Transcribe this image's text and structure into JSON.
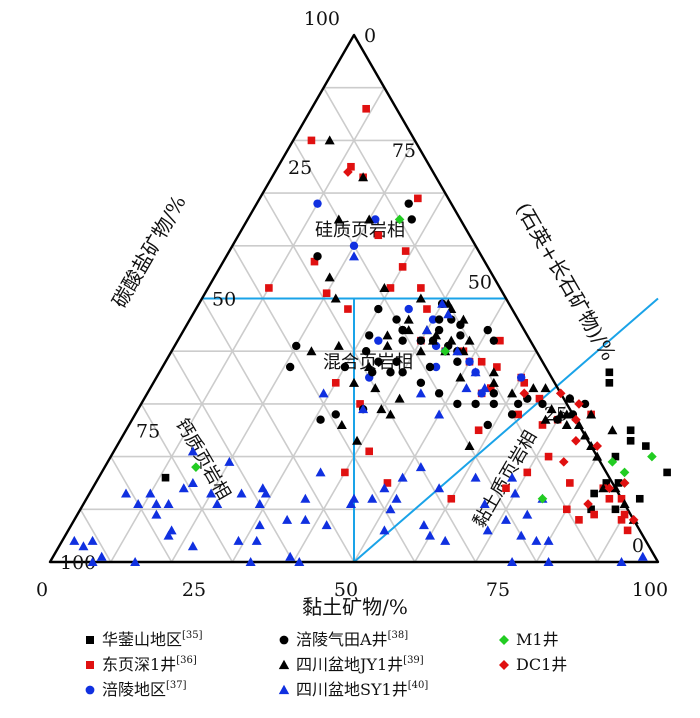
{
  "chart_data": {
    "type": "ternary-scatter",
    "axes": {
      "bottom": {
        "label": "黏土矿物/%",
        "ticks": [
          "0",
          "25",
          "50",
          "75",
          "100"
        ]
      },
      "left": {
        "label": "碳酸盐矿物/%",
        "ticks": [
          "0",
          "25",
          "50",
          "75",
          "100"
        ]
      },
      "right": {
        "label": "(石英+长石矿物)/%",
        "ticks": [
          "100",
          "75",
          "50",
          "25",
          "0"
        ]
      }
    },
    "grid": true,
    "grid_step": 10,
    "region_labels": [
      "硅质页岩相",
      "混合页岩相",
      "钙质页岩相",
      "黏土质页岩相"
    ],
    "legend_position": "bottom",
    "legend": [
      {
        "label": "华蓥山地区",
        "ref": "[35]",
        "color": "#000000",
        "marker": "square"
      },
      {
        "label": "涪陵气田A井",
        "ref": "[38]",
        "color": "#000000",
        "marker": "circle"
      },
      {
        "label": "M1井",
        "ref": "",
        "color": "#22cc22",
        "marker": "diamond"
      },
      {
        "label": "东页深1井",
        "ref": "[36]",
        "color": "#e01010",
        "marker": "square"
      },
      {
        "label": "四川盆地JY1井",
        "ref": "[39]",
        "color": "#000000",
        "marker": "triangle"
      },
      {
        "label": "DC1井",
        "ref": "",
        "color": "#e01010",
        "marker": "diamond"
      },
      {
        "label": "涪陵地区",
        "ref": "[37]",
        "color": "#1030e0",
        "marker": "circle"
      },
      {
        "label": "四川盆地SY1井",
        "ref": "[40]",
        "color": "#1030e0",
        "marker": "triangle"
      }
    ],
    "series": [
      {
        "name": "华蓥山地区",
        "points": [
          [
            84,
            10
          ],
          [
            83,
            13
          ],
          [
            84,
            15
          ],
          [
            86,
            15
          ],
          [
            88,
            10
          ],
          [
            91,
            12
          ],
          [
            93,
            17
          ],
          [
            87,
            22
          ],
          [
            83,
            20
          ],
          [
            84,
            23
          ],
          [
            83,
            25
          ],
          [
            11,
            16
          ],
          [
            75,
            34
          ],
          [
            74,
            36
          ]
        ]
      },
      {
        "name": "东页深1井",
        "points": [
          [
            9,
            86
          ],
          [
            3,
            80
          ],
          [
            15,
            73
          ],
          [
            26,
            69
          ],
          [
            29,
            59
          ],
          [
            15,
            57
          ],
          [
            10,
            52
          ],
          [
            20,
            51
          ],
          [
            30,
            52
          ],
          [
            25,
            48
          ],
          [
            40,
            42
          ],
          [
            45,
            40
          ],
          [
            50,
            38
          ],
          [
            52,
            38
          ],
          [
            60,
            35
          ],
          [
            65,
            31
          ],
          [
            53,
            42
          ],
          [
            48,
            40
          ],
          [
            38,
            48
          ],
          [
            35,
            52
          ],
          [
            30,
            56
          ],
          [
            23,
            62
          ],
          [
            12,
            75
          ],
          [
            70,
            27
          ],
          [
            68,
            26
          ],
          [
            72,
            20
          ],
          [
            70,
            17
          ],
          [
            68,
            14
          ],
          [
            80,
            10
          ],
          [
            84,
            14
          ],
          [
            86,
            12
          ],
          [
            88,
            12
          ],
          [
            83,
            8
          ],
          [
            90,
            8
          ],
          [
            90,
            9
          ],
          [
            85,
            9
          ],
          [
            92,
            6
          ],
          [
            60,
            12
          ],
          [
            48,
            15
          ],
          [
            40,
            17
          ],
          [
            55,
            32
          ],
          [
            30,
            34
          ],
          [
            42,
            21
          ],
          [
            56,
            33
          ],
          [
            61,
            34
          ],
          [
            55,
            37
          ],
          [
            78,
            15
          ],
          [
            75,
            28
          ],
          [
            58,
            25
          ],
          [
            36,
            30
          ],
          [
            63,
            28
          ]
        ]
      },
      {
        "name": "涪陵地区",
        "points": [
          [
            10,
            68
          ],
          [
            20,
            60
          ],
          [
            21,
            65
          ],
          [
            40,
            46
          ],
          [
            45,
            40
          ],
          [
            50,
            38
          ],
          [
            35,
            48
          ],
          [
            43,
            41
          ],
          [
            45,
            37
          ],
          [
            40,
            42
          ],
          [
            35,
            35
          ],
          [
            33,
            42
          ],
          [
            55,
            32
          ],
          [
            52,
            36
          ],
          [
            60,
            35
          ]
        ]
      },
      {
        "name": "涪陵气田A井",
        "points": [
          [
            27,
            65
          ],
          [
            25,
            68
          ],
          [
            15,
            58
          ],
          [
            40,
            49
          ],
          [
            30,
            48
          ],
          [
            40,
            49
          ],
          [
            36,
            44
          ],
          [
            34,
            46
          ],
          [
            31,
            43
          ],
          [
            37,
            42
          ],
          [
            40,
            42
          ],
          [
            45,
            41
          ],
          [
            46,
            43
          ],
          [
            42,
            44
          ],
          [
            42,
            42
          ],
          [
            38,
            38
          ],
          [
            35,
            38
          ],
          [
            35,
            36
          ],
          [
            38,
            36
          ],
          [
            44,
            37
          ],
          [
            48,
            38
          ],
          [
            48,
            32
          ],
          [
            52,
            30
          ],
          [
            55,
            30
          ],
          [
            58,
            30
          ],
          [
            57,
            32
          ],
          [
            62,
            30
          ],
          [
            63,
            31
          ],
          [
            62,
            28
          ],
          [
            59,
            26
          ],
          [
            66,
            30
          ],
          [
            70,
            31
          ],
          [
            73,
            30
          ],
          [
            72,
            28
          ],
          [
            70,
            27
          ],
          [
            37,
            29
          ],
          [
            32,
            40
          ],
          [
            30,
            37
          ],
          [
            33,
            28
          ],
          [
            31,
            27
          ],
          [
            21,
            37
          ],
          [
            20,
            41
          ],
          [
            41,
            46
          ],
          [
            36,
            44
          ],
          [
            40,
            36
          ],
          [
            44,
            34
          ],
          [
            47,
            40
          ],
          [
            45,
            45
          ],
          [
            43,
            46
          ],
          [
            52,
            42
          ],
          [
            50,
            44
          ]
        ]
      },
      {
        "name": "四川盆地JY1井",
        "points": [
          [
            6,
            80
          ],
          [
            15,
            73
          ],
          [
            20,
            65
          ],
          [
            15,
            65
          ],
          [
            19,
            54
          ],
          [
            22,
            50
          ],
          [
            29,
            52
          ],
          [
            36,
            50
          ],
          [
            42,
            48
          ],
          [
            41,
            49
          ],
          [
            36,
            46
          ],
          [
            35,
            41
          ],
          [
            34,
            43
          ],
          [
            37,
            44
          ],
          [
            45,
            42
          ],
          [
            45,
            40
          ],
          [
            42,
            42
          ],
          [
            41,
            40
          ],
          [
            40,
            44
          ],
          [
            48,
            40
          ],
          [
            48,
            42
          ],
          [
            45,
            46
          ],
          [
            42,
            43
          ],
          [
            50,
            35
          ],
          [
            55,
            36
          ],
          [
            56,
            34
          ],
          [
            60,
            32
          ],
          [
            63,
            33
          ],
          [
            65,
            33
          ],
          [
            68,
            29
          ],
          [
            70,
            31
          ],
          [
            70,
            28
          ],
          [
            71,
            28
          ],
          [
            68,
            27
          ],
          [
            72,
            26
          ],
          [
            74,
            26
          ],
          [
            76,
            24
          ],
          [
            78,
            22
          ],
          [
            80,
            20
          ],
          [
            84,
            14
          ],
          [
            86,
            14
          ],
          [
            89,
            11
          ],
          [
            92,
            8
          ],
          [
            40,
            29
          ],
          [
            33,
            34
          ],
          [
            37,
            33
          ],
          [
            34,
            37
          ],
          [
            27,
            41
          ],
          [
            23,
            40
          ],
          [
            39,
            23
          ],
          [
            35,
            26
          ],
          [
            42,
            31
          ],
          [
            42,
            28
          ],
          [
            58,
            22
          ],
          [
            75,
            28
          ],
          [
            80,
            25
          ]
        ]
      },
      {
        "name": "四川盆地SY1井",
        "points": [
          [
            21,
            58
          ],
          [
            40,
            49
          ],
          [
            42,
            47
          ],
          [
            40,
            44
          ],
          [
            47,
            40
          ],
          [
            52,
            36
          ],
          [
            45,
            32
          ],
          [
            55,
            33
          ],
          [
            29,
            32
          ],
          [
            37,
            29
          ],
          [
            52,
            33
          ],
          [
            50,
            28
          ],
          [
            36,
            17
          ],
          [
            52,
            18
          ],
          [
            50,
            16
          ],
          [
            48,
            14
          ],
          [
            47,
            12
          ],
          [
            44,
            12
          ],
          [
            51,
            10
          ],
          [
            51,
            12
          ],
          [
            57,
            14
          ],
          [
            62,
            16
          ],
          [
            68,
            16
          ],
          [
            70,
            13
          ],
          [
            74,
            9
          ],
          [
            71,
            8
          ],
          [
            69,
            6
          ],
          [
            75,
            5
          ],
          [
            78,
            4
          ],
          [
            80,
            4
          ],
          [
            60,
            5
          ],
          [
            58,
            7
          ],
          [
            52,
            6
          ],
          [
            42,
            7
          ],
          [
            75,
            12
          ],
          [
            66,
            11
          ],
          [
            63,
            4
          ],
          [
            76,
            0
          ],
          [
            82,
            0
          ],
          [
            94,
            0
          ],
          [
            97,
            1
          ],
          [
            17,
            5
          ],
          [
            14,
            11
          ],
          [
            22,
            11
          ],
          [
            20,
            19
          ],
          [
            31,
            7
          ],
          [
            38,
            8
          ],
          [
            29,
            11
          ],
          [
            28,
            14
          ],
          [
            36,
            12
          ],
          [
            44,
            11
          ],
          [
            20,
            13
          ],
          [
            35,
            8
          ],
          [
            32,
            4
          ],
          [
            33,
            0
          ],
          [
            41,
            0
          ],
          [
            39,
            1
          ],
          [
            29,
            4
          ],
          [
            16,
            15
          ],
          [
            13,
            21
          ],
          [
            12,
            11
          ],
          [
            8,
            1
          ],
          [
            6,
            13
          ],
          [
            9,
            11
          ],
          [
            10,
            13
          ],
          [
            13,
            9
          ],
          [
            17,
            6
          ],
          [
            4,
            3
          ],
          [
            5,
            4
          ],
          [
            2,
            4
          ],
          [
            7,
            0
          ],
          [
            14,
            0
          ],
          [
            22,
            3
          ],
          [
            15,
            14
          ],
          [
            25,
            13
          ],
          [
            29,
            13
          ]
        ]
      },
      {
        "name": "M1井",
        "points": [
          [
            25,
            65
          ],
          [
            45,
            40
          ],
          [
            15,
            18
          ],
          [
            83,
            19
          ],
          [
            75,
            12
          ],
          [
            86,
            17
          ],
          [
            89,
            20
          ],
          [
            87,
            15
          ]
        ]
      },
      {
        "name": "DC1井",
        "points": [
          [
            12,
            74
          ],
          [
            62,
            32
          ],
          [
            68,
            32
          ],
          [
            72,
            30
          ],
          [
            73,
            27
          ],
          [
            75,
            23
          ],
          [
            79,
            22
          ],
          [
            85,
            14
          ],
          [
            87,
            15
          ],
          [
            92,
            8
          ],
          [
            83,
            11
          ],
          [
            75,
            19
          ]
        ]
      }
    ]
  }
}
